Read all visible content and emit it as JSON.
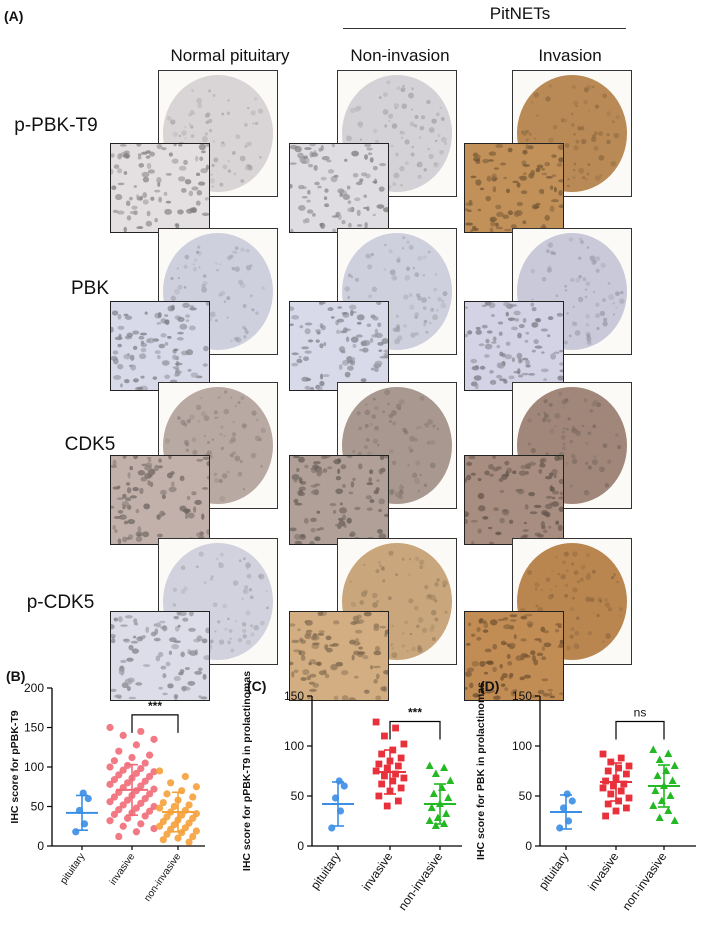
{
  "panel_a": {
    "letter": "(A)",
    "group_label": "PitNETs",
    "columns": [
      "Normal pituitary",
      "Non-invasion",
      "Invasion"
    ],
    "rows": [
      "p-PBK-T9",
      "PBK",
      "CDK5",
      "p-CDK5"
    ],
    "stain_colors": [
      [
        "#d9d4d6",
        "#d4d2d6",
        "#b98a55"
      ],
      [
        "#cfd0de",
        "#cfd0de",
        "#c9c9da"
      ],
      [
        "#b9a9a3",
        "#a89890",
        "#a0877a"
      ],
      [
        "#d2d2de",
        "#c9a67c",
        "#b98650"
      ]
    ]
  },
  "chart_data": [
    {
      "panel": "(B)",
      "type": "scatter",
      "ylabel": "IHC score for pPBK-T9",
      "ylim": [
        0,
        200
      ],
      "yticks": [
        0,
        50,
        100,
        150,
        200
      ],
      "categories": [
        "pituitary",
        "invasive",
        "non-invasive"
      ],
      "colors": [
        "#3a8ee6",
        "#f06b78",
        "#f5a13a"
      ],
      "markers": [
        "circle",
        "circle",
        "circle"
      ],
      "mean": [
        42,
        71,
        43
      ],
      "sd": [
        22,
        32,
        25
      ],
      "significance": {
        "from": 1,
        "to": 2,
        "label": "***"
      },
      "values": [
        [
          18,
          28,
          45,
          60,
          67
        ],
        [
          150,
          145,
          140,
          135,
          128,
          120,
          115,
          112,
          108,
          105,
          102,
          100,
          98,
          96,
          94,
          92,
          90,
          88,
          86,
          84,
          82,
          80,
          78,
          76,
          74,
          72,
          70,
          68,
          66,
          64,
          62,
          60,
          58,
          56,
          54,
          52,
          50,
          48,
          46,
          44,
          42,
          40,
          38,
          35,
          32,
          28,
          25,
          22,
          18,
          12
        ],
        [
          95,
          88,
          80,
          75,
          70,
          66,
          62,
          58,
          55,
          52,
          50,
          48,
          45,
          43,
          41,
          39,
          37,
          35,
          33,
          31,
          29,
          27,
          25,
          23,
          21,
          19,
          17,
          15,
          12,
          10,
          8,
          5
        ]
      ]
    },
    {
      "panel": "(C)",
      "type": "scatter",
      "ylabel": "IHC score for pPBK-T9 in prolactinomas",
      "ylim": [
        0,
        150
      ],
      "yticks": [
        0,
        50,
        100,
        150
      ],
      "categories": [
        "pituitary",
        "invasive",
        "non-invasive"
      ],
      "colors": [
        "#3a8ee6",
        "#e8313b",
        "#22b922"
      ],
      "markers": [
        "circle",
        "square",
        "triangle"
      ],
      "mean": [
        42,
        74,
        42
      ],
      "sd": [
        22,
        22,
        20
      ],
      "significance": {
        "from": 1,
        "to": 2,
        "label": "***"
      },
      "values": [
        [
          18,
          35,
          48,
          60,
          65
        ],
        [
          124,
          118,
          110,
          102,
          96,
          92,
          88,
          85,
          82,
          80,
          78,
          75,
          72,
          70,
          68,
          65,
          62,
          58,
          55,
          50,
          45,
          40
        ],
        [
          80,
          78,
          72,
          65,
          58,
          52,
          48,
          42,
          38,
          32,
          28,
          25,
          22,
          20
        ]
      ]
    },
    {
      "panel": "(D)",
      "type": "scatter",
      "ylabel": "IHC score for PBK in prolactinomas",
      "ylim": [
        0,
        150
      ],
      "yticks": [
        0,
        50,
        100,
        150
      ],
      "categories": [
        "pituitary",
        "invasive",
        "non-invasive"
      ],
      "colors": [
        "#3a8ee6",
        "#e8313b",
        "#22b922"
      ],
      "markers": [
        "circle",
        "square",
        "triangle"
      ],
      "mean": [
        34,
        64,
        60
      ],
      "sd": [
        17,
        19,
        21
      ],
      "significance": {
        "from": 1,
        "to": 2,
        "label": "ns"
      },
      "values": [
        [
          18,
          25,
          38,
          45,
          52
        ],
        [
          92,
          88,
          84,
          80,
          78,
          75,
          72,
          68,
          65,
          62,
          60,
          58,
          55,
          52,
          48,
          45,
          42,
          38,
          35,
          30
        ],
        [
          96,
          92,
          86,
          80,
          75,
          70,
          65,
          60,
          55,
          50,
          45,
          40,
          35,
          28,
          25
        ]
      ]
    }
  ]
}
